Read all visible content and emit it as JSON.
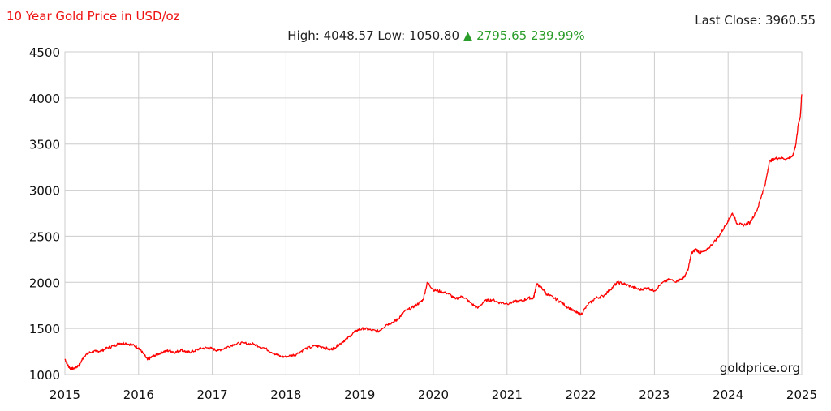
{
  "header": {
    "title": "10 Year Gold Price in USD/oz",
    "last_close_label": "Last Close:",
    "last_close_value": "3960.55",
    "high_label": "High:",
    "high_value": "4048.57",
    "low_label": "Low:",
    "low_value": "1050.80",
    "change_arrow": "▲",
    "change_abs": "2795.65",
    "change_pct": "239.99%"
  },
  "watermark": "goldprice.org",
  "colors": {
    "line": "#ff0000",
    "title": "#ee1111",
    "change": "#2a9d2a",
    "grid": "#cccccc"
  },
  "chart_data": {
    "type": "line",
    "title": "10 Year Gold Price in USD/oz",
    "xlabel": "",
    "ylabel": "",
    "xlim": [
      2015,
      2025
    ],
    "ylim": [
      1000,
      4500
    ],
    "grid": true,
    "xticks": [
      2015,
      2016,
      2017,
      2018,
      2019,
      2020,
      2021,
      2022,
      2023,
      2024,
      2025
    ],
    "yticks": [
      1000,
      1500,
      2000,
      2500,
      3000,
      3500,
      4000,
      4500
    ],
    "series": [
      {
        "name": "",
        "x": [
          2015.0,
          2015.04,
          2015.08,
          2015.14,
          2015.2,
          2015.26,
          2015.34,
          2015.42,
          2015.5,
          2015.58,
          2015.66,
          2015.74,
          2015.82,
          2015.92,
          2016.0,
          2016.06,
          2016.12,
          2016.18,
          2016.26,
          2016.34,
          2016.42,
          2016.5,
          2016.58,
          2016.66,
          2016.74,
          2016.82,
          2016.92,
          2017.0,
          2017.08,
          2017.18,
          2017.3,
          2017.42,
          2017.56,
          2017.7,
          2017.84,
          2017.94,
          2018.04,
          2018.14,
          2018.26,
          2018.4,
          2018.5,
          2018.6,
          2018.66,
          2018.76,
          2018.86,
          2018.96,
          2019.06,
          2019.16,
          2019.26,
          2019.36,
          2019.46,
          2019.52,
          2019.6,
          2019.7,
          2019.78,
          2019.86,
          2019.92,
          2020.0,
          2020.1,
          2020.2,
          2020.3,
          2020.4,
          2020.5,
          2020.6,
          2020.7,
          2020.8,
          2020.9,
          2021.0,
          2021.1,
          2021.2,
          2021.3,
          2021.36,
          2021.4,
          2021.46,
          2021.54,
          2021.64,
          2021.74,
          2021.84,
          2021.92,
          2022.0,
          2022.1,
          2022.2,
          2022.3,
          2022.4,
          2022.5,
          2022.6,
          2022.7,
          2022.8,
          2022.9,
          2023.0,
          2023.1,
          2023.2,
          2023.3,
          2023.4,
          2023.46,
          2023.5,
          2023.56,
          2023.62,
          2023.7,
          2023.8,
          2023.9,
          2024.0,
          2024.06,
          2024.12,
          2024.2,
          2024.3,
          2024.4,
          2024.46,
          2024.5,
          2024.56,
          2024.62,
          2024.7,
          2024.8,
          2024.88,
          2024.92,
          2024.95,
          2024.98,
          2025.0
        ],
        "values": [
          1170,
          1100,
          1060,
          1070,
          1110,
          1200,
          1240,
          1250,
          1260,
          1290,
          1310,
          1340,
          1340,
          1320,
          1290,
          1230,
          1160,
          1190,
          1220,
          1250,
          1260,
          1240,
          1270,
          1240,
          1250,
          1280,
          1290,
          1280,
          1260,
          1290,
          1330,
          1340,
          1330,
          1290,
          1230,
          1190,
          1200,
          1220,
          1280,
          1310,
          1300,
          1270,
          1290,
          1350,
          1410,
          1480,
          1500,
          1480,
          1470,
          1540,
          1570,
          1600,
          1680,
          1720,
          1760,
          1810,
          2000,
          1920,
          1900,
          1880,
          1820,
          1850,
          1780,
          1720,
          1800,
          1810,
          1780,
          1770,
          1790,
          1800,
          1830,
          1830,
          1980,
          1950,
          1870,
          1830,
          1780,
          1720,
          1680,
          1650,
          1760,
          1830,
          1850,
          1920,
          2000,
          1980,
          1950,
          1920,
          1940,
          1910,
          1990,
          2030,
          2010,
          2050,
          2150,
          2310,
          2360,
          2320,
          2340,
          2430,
          2530,
          2670,
          2750,
          2640,
          2620,
          2650,
          2800,
          2960,
          3050,
          3310,
          3340,
          3350,
          3340,
          3370,
          3500,
          3700,
          3800,
          4040
        ]
      }
    ]
  }
}
